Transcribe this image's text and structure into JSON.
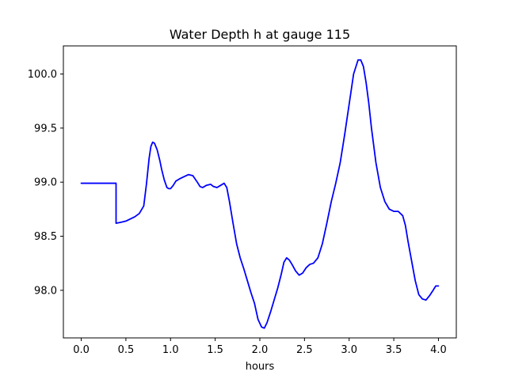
{
  "chart_data": {
    "type": "line",
    "title": "Water Depth h at gauge 115",
    "xlabel": "hours",
    "ylabel": "",
    "xlim": [
      -0.2,
      4.2
    ],
    "ylim": [
      97.56,
      100.26
    ],
    "x_ticks": [
      0.0,
      0.5,
      1.0,
      1.5,
      2.0,
      2.5,
      3.0,
      3.5,
      4.0
    ],
    "x_tick_labels": [
      "0.0",
      "0.5",
      "1.0",
      "1.5",
      "2.0",
      "2.5",
      "3.0",
      "3.5",
      "4.0"
    ],
    "y_ticks": [
      98.0,
      98.5,
      99.0,
      99.5,
      100.0
    ],
    "y_tick_labels": [
      "98.0",
      "98.5",
      "99.0",
      "99.5",
      "100.0"
    ],
    "grid": false,
    "series": [
      {
        "color": "#0000ff",
        "x": [
          0.0,
          0.1,
          0.2,
          0.3,
          0.39,
          0.39,
          0.45,
          0.5,
          0.55,
          0.6,
          0.65,
          0.7,
          0.73,
          0.76,
          0.78,
          0.8,
          0.82,
          0.85,
          0.88,
          0.9,
          0.93,
          0.96,
          0.98,
          1.0,
          1.03,
          1.06,
          1.1,
          1.15,
          1.2,
          1.25,
          1.3,
          1.33,
          1.36,
          1.4,
          1.45,
          1.48,
          1.52,
          1.56,
          1.6,
          1.63,
          1.66,
          1.7,
          1.74,
          1.78,
          1.82,
          1.86,
          1.9,
          1.94,
          1.98,
          2.02,
          2.05,
          2.08,
          2.12,
          2.16,
          2.2,
          2.24,
          2.27,
          2.3,
          2.33,
          2.36,
          2.4,
          2.44,
          2.48,
          2.52,
          2.56,
          2.6,
          2.65,
          2.7,
          2.75,
          2.8,
          2.85,
          2.9,
          2.95,
          3.0,
          3.05,
          3.1,
          3.13,
          3.16,
          3.19,
          3.22,
          3.25,
          3.3,
          3.35,
          3.4,
          3.45,
          3.5,
          3.55,
          3.6,
          3.63,
          3.66,
          3.7,
          3.74,
          3.78,
          3.82,
          3.86,
          3.9,
          3.94,
          3.97,
          4.0
        ],
        "y": [
          98.99,
          98.99,
          98.99,
          98.99,
          98.99,
          98.62,
          98.63,
          98.64,
          98.66,
          98.68,
          98.71,
          98.78,
          98.98,
          99.22,
          99.33,
          99.37,
          99.36,
          99.3,
          99.2,
          99.12,
          99.02,
          98.95,
          98.94,
          98.94,
          98.97,
          99.01,
          99.03,
          99.05,
          99.07,
          99.06,
          99.0,
          98.96,
          98.95,
          98.97,
          98.98,
          98.96,
          98.95,
          98.97,
          98.99,
          98.95,
          98.82,
          98.62,
          98.43,
          98.3,
          98.2,
          98.09,
          97.98,
          97.88,
          97.73,
          97.66,
          97.65,
          97.7,
          97.8,
          97.91,
          98.02,
          98.15,
          98.26,
          98.3,
          98.28,
          98.24,
          98.18,
          98.14,
          98.16,
          98.21,
          98.24,
          98.25,
          98.3,
          98.43,
          98.62,
          98.82,
          98.99,
          99.18,
          99.44,
          99.72,
          100.0,
          100.13,
          100.13,
          100.07,
          99.92,
          99.73,
          99.5,
          99.18,
          98.95,
          98.82,
          98.75,
          98.73,
          98.73,
          98.69,
          98.6,
          98.45,
          98.27,
          98.09,
          97.96,
          97.92,
          97.91,
          97.95,
          98.0,
          98.04,
          98.04
        ]
      }
    ]
  }
}
